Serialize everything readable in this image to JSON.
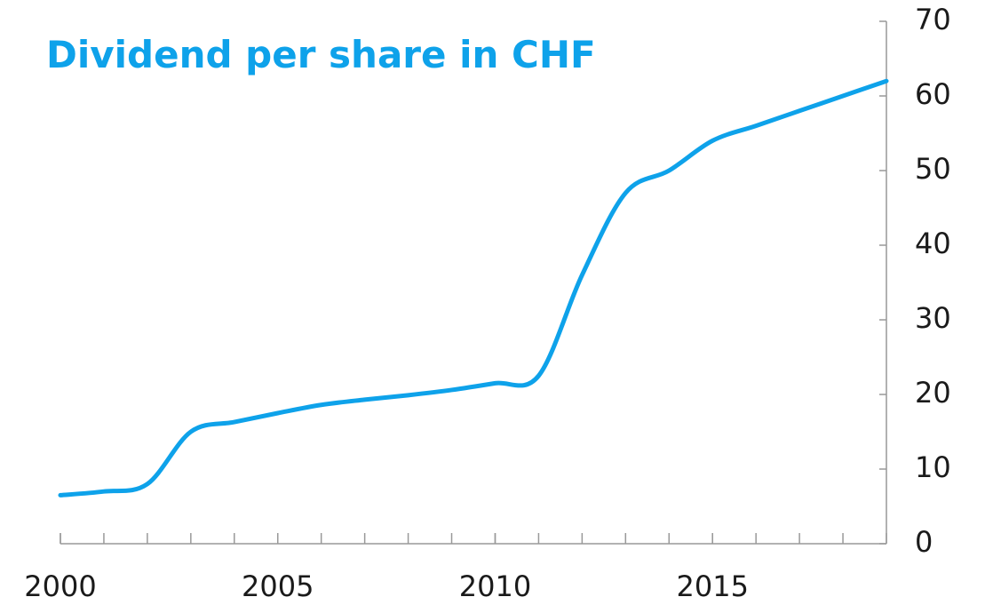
{
  "chart_data": {
    "type": "line",
    "title": "Dividend per share in CHF",
    "x": [
      2000,
      2001,
      2002,
      2003,
      2004,
      2005,
      2006,
      2007,
      2008,
      2009,
      2010,
      2011,
      2012,
      2013,
      2014,
      2015,
      2016,
      2017,
      2018,
      2019
    ],
    "series": [
      {
        "name": "Dividend per share",
        "color": "#0ea2ea",
        "values": [
          6.5,
          7.0,
          8.0,
          15.0,
          16.3,
          17.5,
          18.6,
          19.3,
          19.9,
          20.6,
          21.5,
          22.5,
          36,
          47,
          50,
          54,
          56,
          58,
          60,
          62
        ]
      }
    ],
    "xlim": [
      2000,
      2019
    ],
    "xticks": [
      2000,
      2005,
      2010,
      2015
    ],
    "ylim": [
      0,
      70
    ],
    "yticks": [
      0,
      10,
      20,
      30,
      40,
      50,
      60,
      70
    ],
    "yaxis_side": "right",
    "grid": false
  }
}
